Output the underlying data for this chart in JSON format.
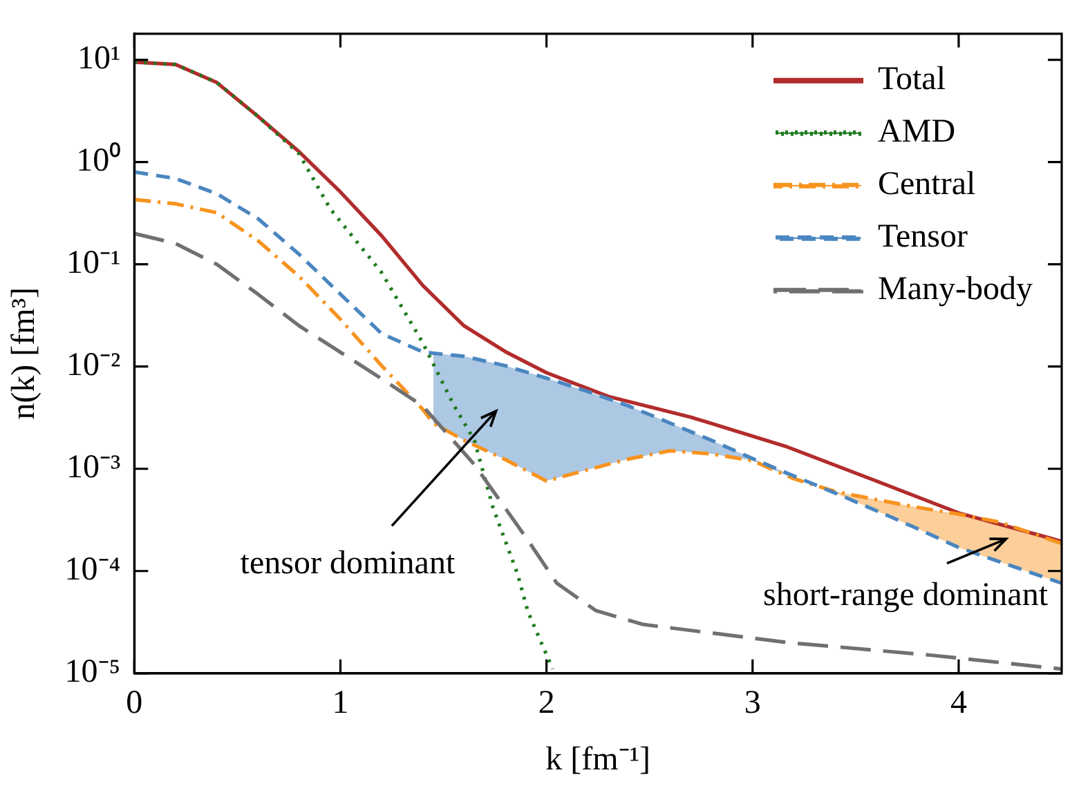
{
  "chart_data": {
    "type": "line",
    "xlabel": "k [fm⁻¹]",
    "ylabel": "n(k) [fm³]",
    "log": "y",
    "xlim": [
      0,
      4.5
    ],
    "xticks": [
      0,
      1,
      2,
      3,
      4
    ],
    "ylim": [
      1e-05,
      18
    ],
    "yticks": [
      {
        "value": 10,
        "label": "10¹"
      },
      {
        "value": 1,
        "label": "10⁰"
      },
      {
        "value": 0.1,
        "label": "10⁻¹"
      },
      {
        "value": 0.01,
        "label": "10⁻²"
      },
      {
        "value": 0.001,
        "label": "10⁻³"
      },
      {
        "value": 0.0001,
        "label": "10⁻⁴"
      },
      {
        "value": 1e-05,
        "label": "10⁻⁵"
      }
    ],
    "legend": "top right",
    "grid": false,
    "marker": "none",
    "series": [
      {
        "name": "Total",
        "color": "#b22c2c",
        "line_style": "solid",
        "x": [
          0,
          0.2,
          0.4,
          0.6,
          0.8,
          1.0,
          1.2,
          1.4,
          1.6,
          1.8,
          2.0,
          2.3,
          2.7,
          3.16,
          3.6,
          4.0,
          4.5
        ],
        "values": [
          9.5,
          9.0,
          6.0,
          2.8,
          1.26,
          0.51,
          0.19,
          0.062,
          0.025,
          0.014,
          0.0087,
          0.0051,
          0.0032,
          0.00166,
          0.00076,
          0.00037,
          0.000195
        ]
      },
      {
        "name": "AMD",
        "color": "#1e7a1e",
        "line_style": "dotted",
        "x": [
          0,
          0.2,
          0.4,
          0.6,
          0.8,
          0.95,
          1.2,
          1.4,
          1.55,
          1.65,
          1.74,
          1.86,
          1.91,
          2.03
        ],
        "values": [
          9.5,
          9.0,
          6.0,
          2.8,
          1.2,
          0.35,
          0.083,
          0.017,
          0.0042,
          0.0019,
          0.00042,
          9.3e-05,
          4e-05,
          1.1e-05
        ]
      },
      {
        "name": "Central",
        "color": "#f7931e",
        "line_style": "dashdot",
        "x": [
          0,
          0.2,
          0.4,
          0.6,
          0.8,
          1.0,
          1.2,
          1.4,
          1.45,
          1.6,
          1.8,
          2.0,
          2.2,
          2.4,
          2.6,
          2.8,
          3.0,
          3.2,
          3.4,
          3.6,
          3.8,
          4.0,
          4.2,
          4.5
        ],
        "values": [
          0.43,
          0.39,
          0.32,
          0.17,
          0.076,
          0.029,
          0.0102,
          0.0038,
          0.0028,
          0.0019,
          0.00123,
          0.00076,
          0.00098,
          0.00125,
          0.0015,
          0.0014,
          0.0012,
          0.0008,
          0.0006,
          0.0005,
          0.00042,
          0.00036,
          0.0003,
          0.000186
        ]
      },
      {
        "name": "Tensor",
        "color": "#4a86c0",
        "line_style": "dashed",
        "x": [
          0,
          0.2,
          0.4,
          0.6,
          0.8,
          1.0,
          1.2,
          1.4,
          1.45,
          1.6,
          1.8,
          2.0,
          2.2,
          2.4,
          2.6,
          2.8,
          3.0,
          3.2,
          3.4,
          3.6,
          3.8,
          4.0,
          4.2,
          4.5
        ],
        "values": [
          0.8,
          0.69,
          0.49,
          0.28,
          0.125,
          0.051,
          0.021,
          0.0139,
          0.0135,
          0.0126,
          0.0102,
          0.0077,
          0.0057,
          0.0041,
          0.0028,
          0.0019,
          0.00126,
          0.00085,
          0.00058,
          0.00039,
          0.00026,
          0.00017,
          0.000123,
          7.6e-05
        ],
        "upper": [
          null,
          null,
          null,
          null,
          null,
          null,
          null,
          null,
          0.0135,
          0.0126,
          0.0102,
          0.0077,
          0.0057,
          0.0041,
          0.0028,
          0.0019,
          0.00126,
          0.00085,
          0.00058,
          0.00039,
          0.00026,
          0.00017,
          0.000123,
          7.6e-05
        ],
        "lower": [
          null,
          null,
          null,
          null,
          null,
          null,
          null,
          null,
          0.0028,
          0.0019,
          0.00123,
          0.00076,
          0.00098,
          0.00125,
          0.0015,
          0.0014,
          0.0012,
          0.0008,
          0.0006,
          0.0005,
          0.00042,
          0.00036,
          0.0003,
          0.000186
        ]
      },
      {
        "name": "Many-body",
        "color": "#707070",
        "line_style": "longdash",
        "x": [
          0,
          0.2,
          0.4,
          0.6,
          0.8,
          1.0,
          1.2,
          1.4,
          1.65,
          1.91,
          2.05,
          2.24,
          2.47,
          3.17,
          3.87,
          4.5
        ],
        "values": [
          0.2,
          0.16,
          0.1,
          0.051,
          0.025,
          0.0138,
          0.0076,
          0.0041,
          0.0011,
          0.0002,
          7.6e-05,
          4.1e-05,
          3e-05,
          2e-05,
          1.5e-05,
          1.1e-05
        ]
      }
    ],
    "annotations": [
      "tensor dominant",
      "short-range dominant"
    ]
  }
}
